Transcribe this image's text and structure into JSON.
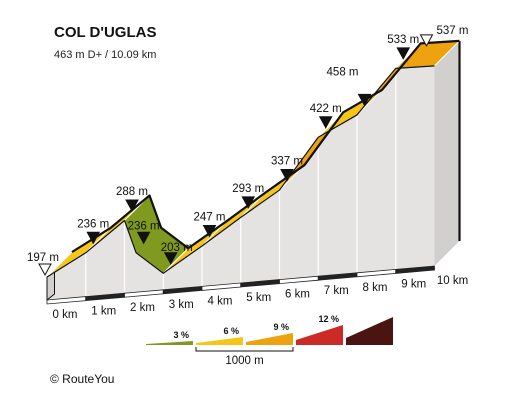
{
  "header": {
    "title": "COL D'UGLAS",
    "subtitle": "463 m D+ / 10.09 km"
  },
  "credit": "©  RouteYou",
  "chart_data": {
    "type": "area",
    "title": "COL D'UGLAS",
    "subtitle": "463 m D+ / 10.09 km",
    "x_unit": "km",
    "y_unit": "m",
    "xlim": [
      0,
      10
    ],
    "km_ticks": [
      {
        "x": 0,
        "label": "0 km"
      },
      {
        "x": 1,
        "label": "1 km"
      },
      {
        "x": 2,
        "label": "2 km"
      },
      {
        "x": 3,
        "label": "3 km"
      },
      {
        "x": 4,
        "label": "4 km"
      },
      {
        "x": 5,
        "label": "5 km"
      },
      {
        "x": 6,
        "label": "6 km"
      },
      {
        "x": 7,
        "label": "7 km"
      },
      {
        "x": 8,
        "label": "8 km"
      },
      {
        "x": 9,
        "label": "9 km"
      },
      {
        "x": 10,
        "label": "10 km"
      }
    ],
    "points": [
      {
        "x": 0,
        "y": 197,
        "label": "197 m",
        "marker": "start"
      },
      {
        "x": 1,
        "y": 236,
        "label": "236 m",
        "marker": "filled"
      },
      {
        "x": 2,
        "y": 288,
        "label": "288 m",
        "marker": "filled"
      },
      {
        "x": 2.3,
        "y": 236,
        "label": "236 m",
        "marker": "filled"
      },
      {
        "x": 3,
        "y": 203,
        "label": "203 m",
        "marker": "filled"
      },
      {
        "x": 4,
        "y": 247,
        "label": "247 m",
        "marker": "filled"
      },
      {
        "x": 5,
        "y": 293,
        "label": "293 m",
        "marker": "filled"
      },
      {
        "x": 6,
        "y": 337,
        "label": "337 m",
        "marker": "filled"
      },
      {
        "x": 7,
        "y": 422,
        "label": "422 m",
        "marker": "filled"
      },
      {
        "x": 8,
        "y": 458,
        "label": "458 m",
        "marker": "filled"
      },
      {
        "x": 9,
        "y": 533,
        "label": "533 m",
        "marker": "filled"
      },
      {
        "x": 10,
        "y": 537,
        "label": "537 m",
        "marker": "end"
      }
    ],
    "segments": [
      {
        "from": 0,
        "to": 1,
        "color": "#f5c518"
      },
      {
        "from": 1,
        "to": 2,
        "color": "#f5c518"
      },
      {
        "from": 2,
        "to": 3,
        "color": "#7f9a1e"
      },
      {
        "from": 3,
        "to": 4,
        "color": "#f5c518"
      },
      {
        "from": 4,
        "to": 5,
        "color": "#f5c518"
      },
      {
        "from": 5,
        "to": 6,
        "color": "#f5c518"
      },
      {
        "from": 6,
        "to": 7,
        "color": "#eea20f"
      },
      {
        "from": 7,
        "to": 8,
        "color": "#f5c518"
      },
      {
        "from": 8,
        "to": 9,
        "color": "#eea20f"
      }
    ],
    "legend": {
      "items": [
        {
          "label": "3 %",
          "color": "#7f9a1e"
        },
        {
          "label": "6 %",
          "color": "#f5c518"
        },
        {
          "label": "9 %",
          "color": "#eea20f"
        },
        {
          "label": "12 %",
          "color": "#cc2a27"
        },
        {
          "label": "",
          "color": "#4a1510"
        }
      ],
      "scale_label": "1000 m"
    },
    "colors": {
      "side": "#e5e2e2",
      "side_dark": "#d2cfcf",
      "base_bar": "#222222",
      "outline": "#111111"
    }
  }
}
